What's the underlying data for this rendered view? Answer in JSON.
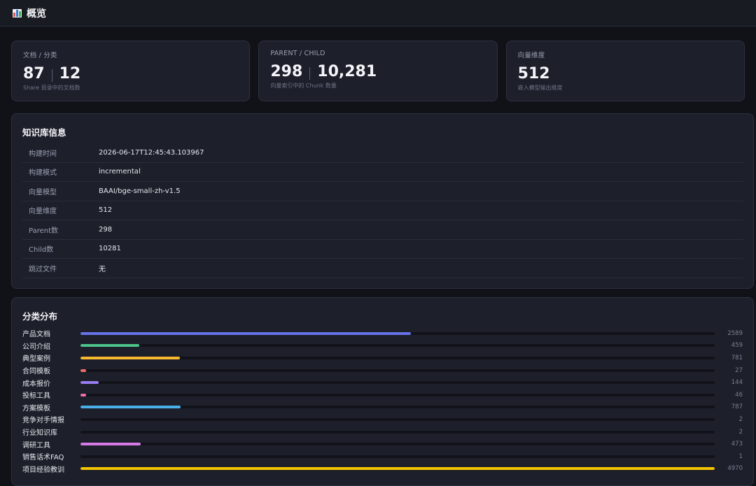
{
  "header": {
    "title": "概览",
    "icon": "bar-chart-icon"
  },
  "stats": [
    {
      "label": "文档 / 分类",
      "value_a": "87",
      "value_b": "12",
      "sub": "Share 目录中的文档数"
    },
    {
      "label": "PARENT / CHILD",
      "value_a": "298",
      "value_b": "10,281",
      "sub": "向量索引中的 Chunk 数量"
    },
    {
      "label": "向量维度",
      "value_a": "512",
      "value_b": null,
      "sub": "嵌入模型输出维度"
    }
  ],
  "info": {
    "title": "知识库信息",
    "rows": [
      {
        "key": "构建时间",
        "value": "2026-06-17T12:45:43.103967"
      },
      {
        "key": "构建模式",
        "value": "incremental"
      },
      {
        "key": "向量模型",
        "value": "BAAI/bge-small-zh-v1.5"
      },
      {
        "key": "向量维度",
        "value": "512"
      },
      {
        "key": "Parent数",
        "value": "298"
      },
      {
        "key": "Child数",
        "value": "10281"
      },
      {
        "key": "跳过文件",
        "value": "无"
      }
    ]
  },
  "distribution": {
    "title": "分类分布",
    "max": 4970,
    "items": [
      {
        "label": "产品文档",
        "count": 2589,
        "color": "#6673e8"
      },
      {
        "label": "公司介绍",
        "count": 459,
        "color": "#4cc38a"
      },
      {
        "label": "典型案例",
        "count": 781,
        "color": "#f5b82e"
      },
      {
        "label": "合同模板",
        "count": 27,
        "color": "#ef6b6b"
      },
      {
        "label": "成本报价",
        "count": 144,
        "color": "#9a7cf0"
      },
      {
        "label": "投标工具",
        "count": 46,
        "color": "#ec6fa8"
      },
      {
        "label": "方案模板",
        "count": 787,
        "color": "#4aaee8"
      },
      {
        "label": "竞争对手情报",
        "count": 2,
        "color": "#3fc2b5"
      },
      {
        "label": "行业知识库",
        "count": 2,
        "color": "#f08c3c"
      },
      {
        "label": "调研工具",
        "count": 473,
        "color": "#d77ae8"
      },
      {
        "label": "销售话术FAQ",
        "count": 1,
        "color": "#8bc34a"
      },
      {
        "label": "项目经验教训",
        "count": 4970,
        "color": "#f5c400"
      }
    ]
  }
}
